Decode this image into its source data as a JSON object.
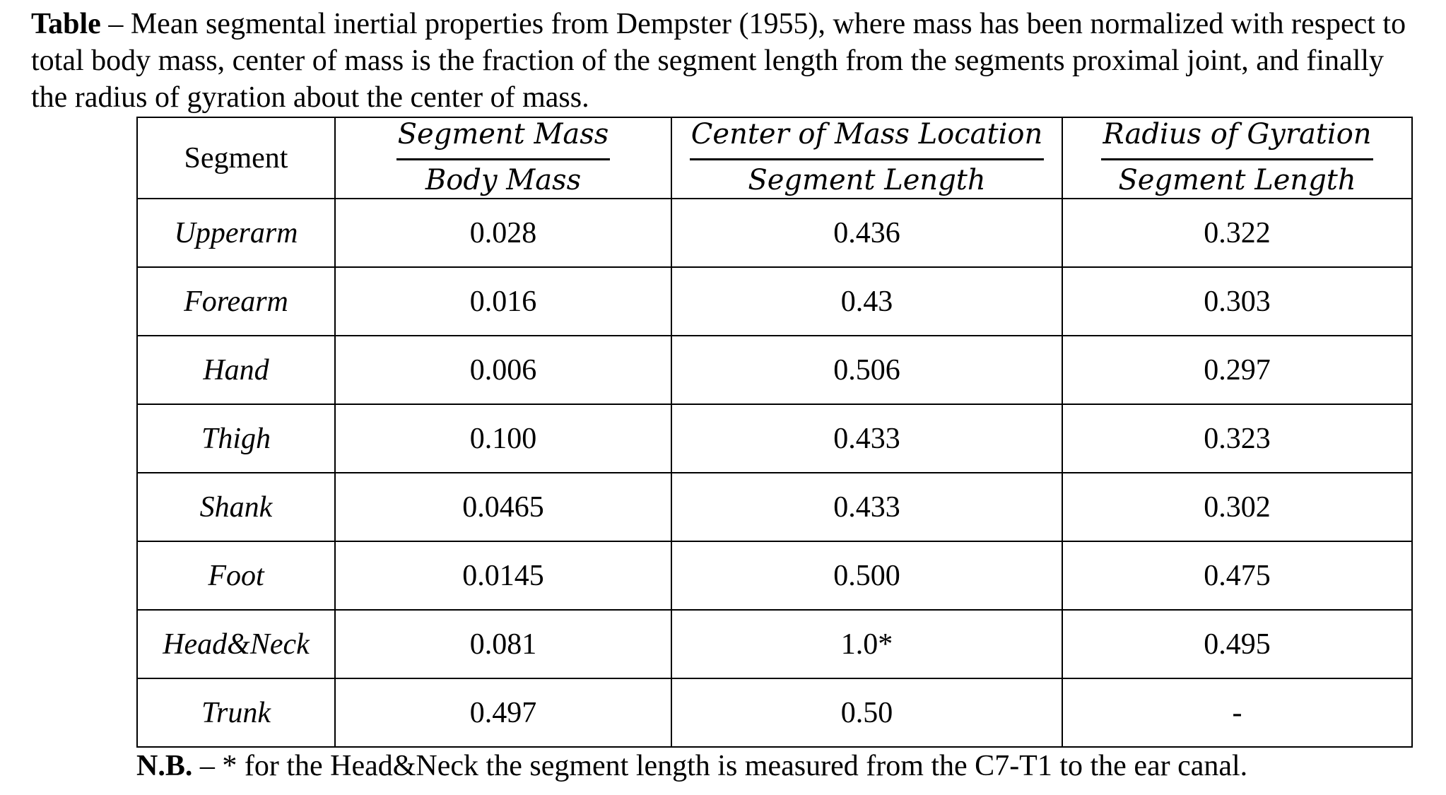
{
  "caption": {
    "label": "Table",
    "text": " – Mean segmental inertial properties from Dempster (1955), where mass has been normalized with respect to total body mass, center of mass is the fraction of the segment length from the segments proximal joint, and finally the radius of gyration about the center of mass."
  },
  "table": {
    "header": {
      "segment": "Segment",
      "mass": {
        "numerator": "Segment Mass",
        "denominator": "Body Mass"
      },
      "com": {
        "numerator": "Center of Mass Location",
        "denominator": "Segment Length"
      },
      "gyration": {
        "numerator": "Radius of Gyration",
        "denominator": "Segment Length"
      }
    },
    "rows": [
      {
        "segment": "Upperarm",
        "mass": "0.028",
        "com": "0.436",
        "gyration": "0.322"
      },
      {
        "segment": "Forearm",
        "mass": "0.016",
        "com": "0.43",
        "gyration": "0.303"
      },
      {
        "segment": "Hand",
        "mass": "0.006",
        "com": "0.506",
        "gyration": "0.297"
      },
      {
        "segment": "Thigh",
        "mass": "0.100",
        "com": "0.433",
        "gyration": "0.323"
      },
      {
        "segment": "Shank",
        "mass": "0.0465",
        "com": "0.433",
        "gyration": "0.302"
      },
      {
        "segment": "Foot",
        "mass": "0.0145",
        "com": "0.500",
        "gyration": "0.475"
      },
      {
        "segment": "Head&Neck",
        "mass": "0.081",
        "com": "1.0*",
        "gyration": "0.495"
      },
      {
        "segment": "Trunk",
        "mass": "0.497",
        "com": "0.50",
        "gyration": "-"
      }
    ]
  },
  "note": {
    "label": "N.B.",
    "text": " – * for the Head&Neck the segment length is measured from the C7-T1 to the ear canal."
  }
}
